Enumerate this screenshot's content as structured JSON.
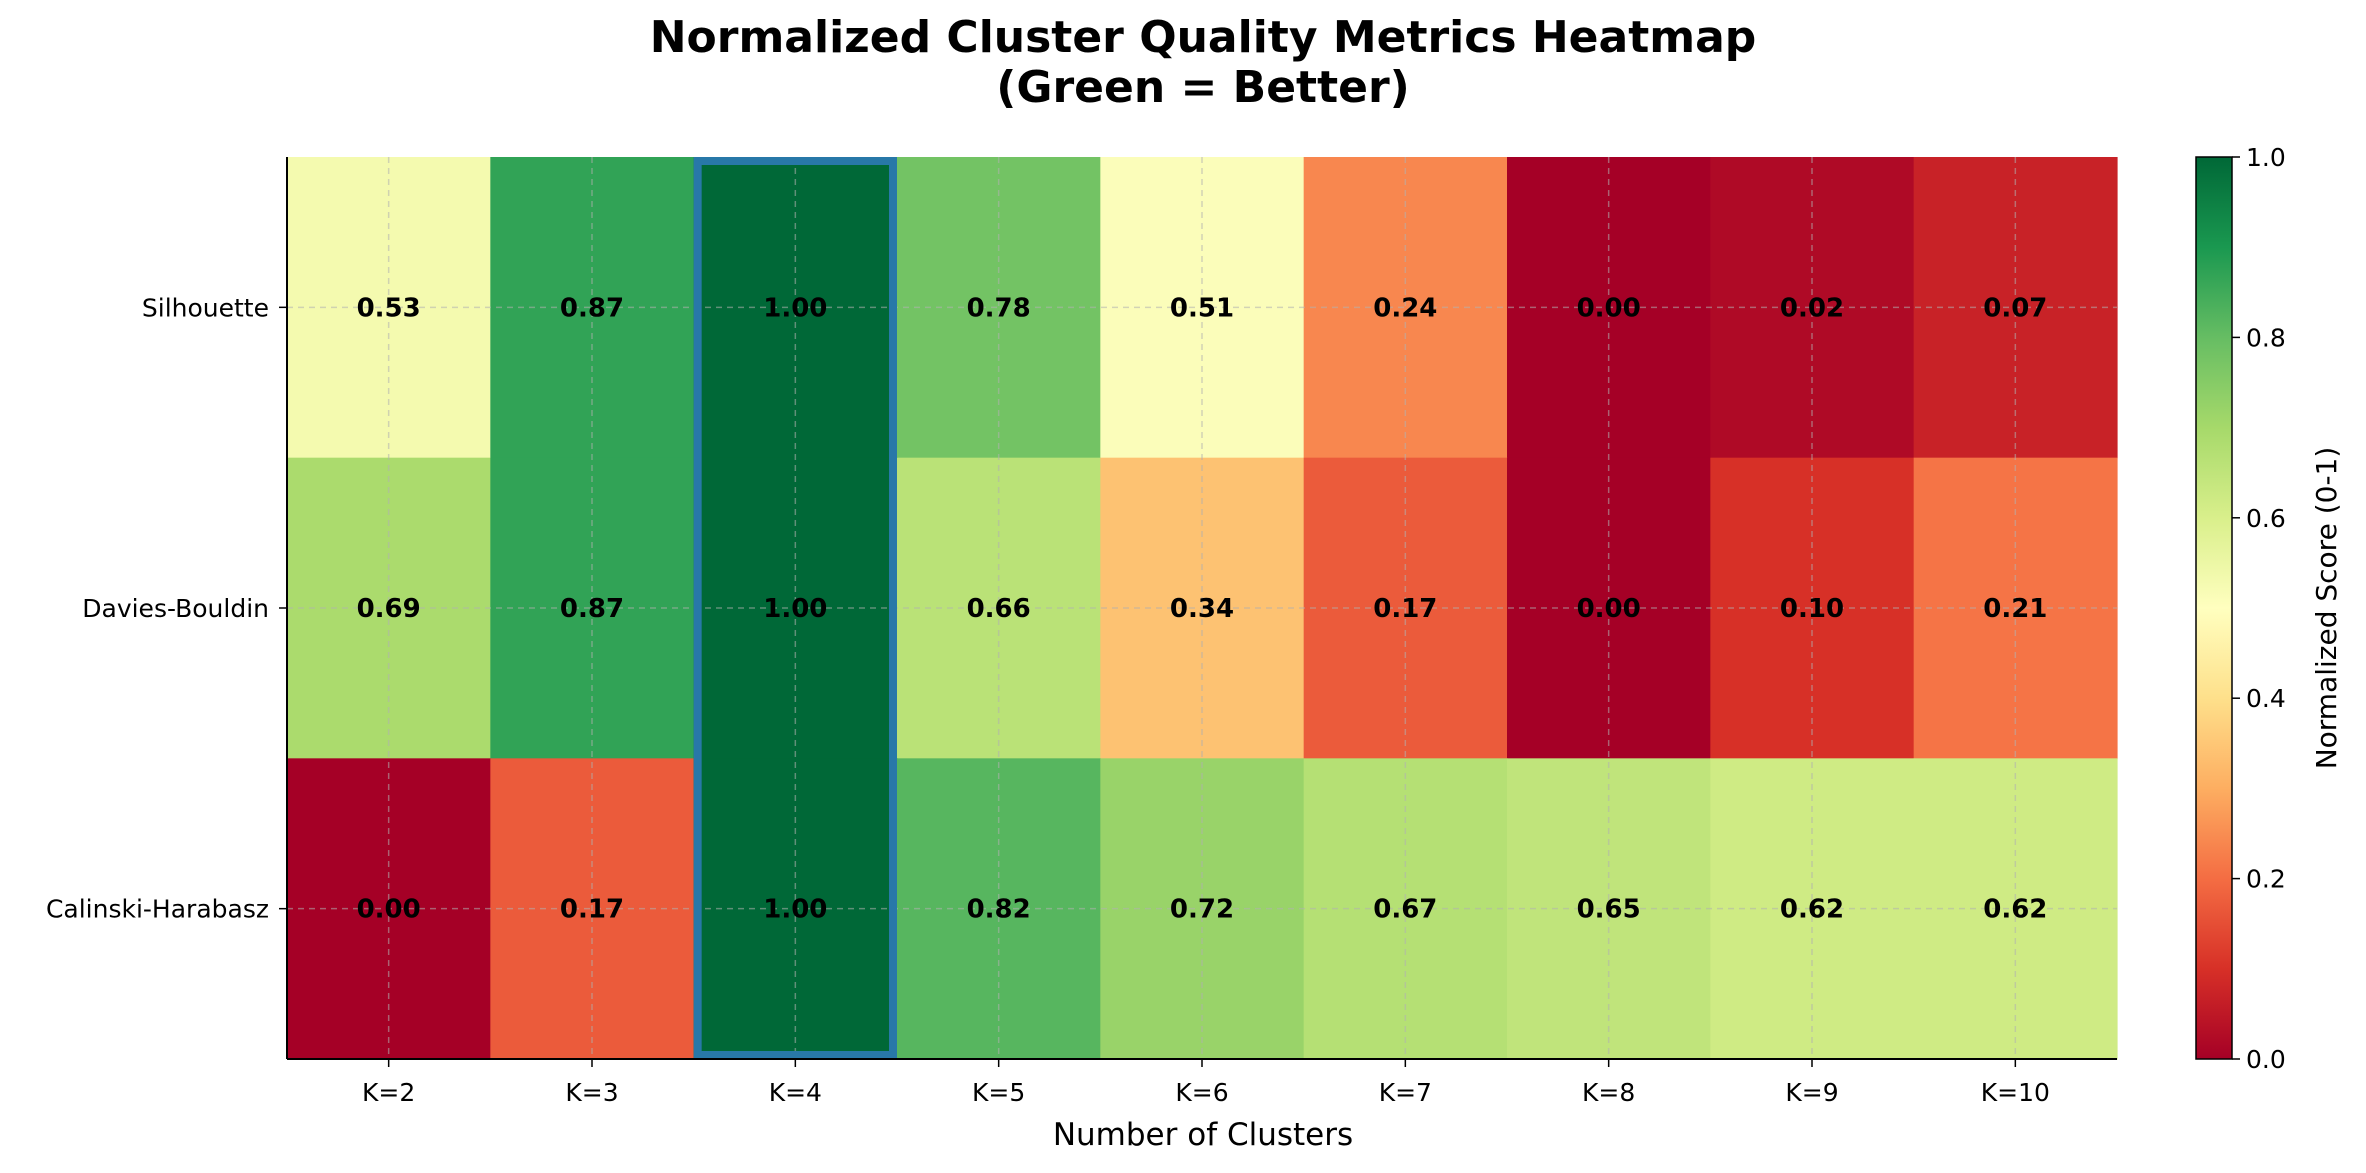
{
  "chart_data": {
    "type": "heatmap",
    "title_line1": "Normalized Cluster Quality Metrics Heatmap",
    "title_line2": "(Green = Better)",
    "xlabel": "Number of Clusters",
    "x_categories": [
      "K=2",
      "K=3",
      "K=4",
      "K=5",
      "K=6",
      "K=7",
      "K=8",
      "K=9",
      "K=10"
    ],
    "y_categories": [
      "Silhouette",
      "Davies-Bouldin",
      "Calinski-Harabasz"
    ],
    "values": [
      [
        0.53,
        0.87,
        1.0,
        0.78,
        0.51,
        0.24,
        0.0,
        0.02,
        0.07
      ],
      [
        0.69,
        0.87,
        1.0,
        0.66,
        0.34,
        0.17,
        0.0,
        0.1,
        0.21
      ],
      [
        0.0,
        0.17,
        1.0,
        0.82,
        0.72,
        0.67,
        0.65,
        0.62,
        0.62
      ]
    ],
    "value_format": "0.00",
    "colormap": "RdYlGn",
    "vmin": 0.0,
    "vmax": 1.0,
    "highlighted_column": "K=4",
    "highlight_color": "#2878a8",
    "grid": true,
    "colorbar": {
      "label": "Normalized Score (0-1)",
      "ticks": [
        "0.0",
        "0.2",
        "0.4",
        "0.6",
        "0.8",
        "1.0"
      ]
    }
  }
}
